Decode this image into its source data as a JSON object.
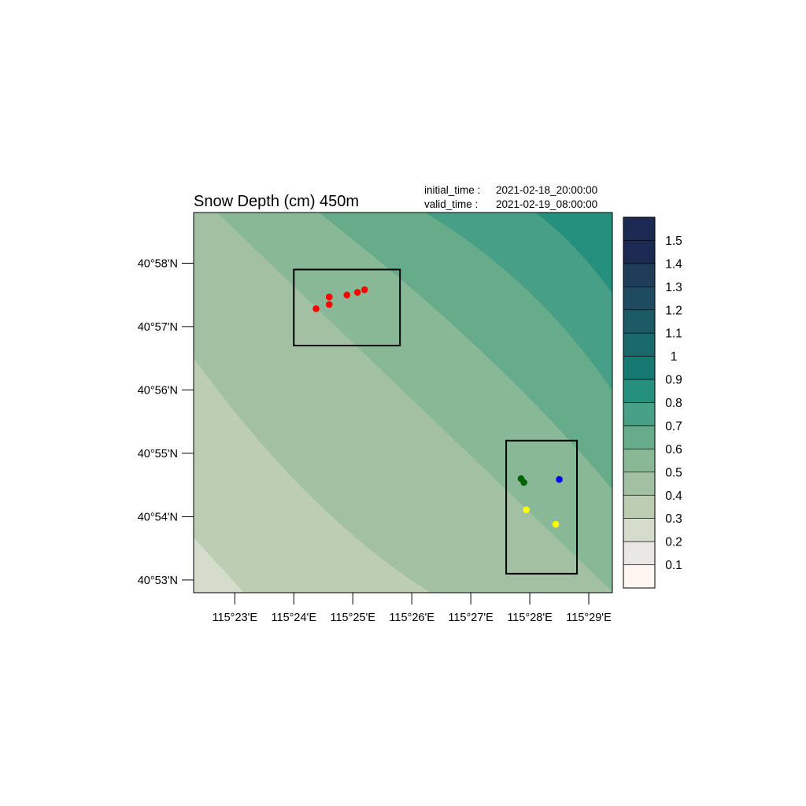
{
  "title": "Snow Depth (cm) 450m",
  "meta": {
    "initial_label": "initial_time :",
    "initial_value": "2021-02-18_20:00:00",
    "valid_label": "valid_time  :",
    "valid_value": "2021-02-19_08:00:00"
  },
  "axes": {
    "x_ticks": [
      "115°23'E",
      "115°24'E",
      "115°25'E",
      "115°26'E",
      "115°27'E",
      "115°28'E",
      "115°29'E"
    ],
    "y_ticks": [
      "40°58'N",
      "40°57'N",
      "40°56'N",
      "40°55'N",
      "40°54'N",
      "40°53'N"
    ],
    "x_range_deg": [
      115.3717,
      115.49
    ],
    "y_range_deg": [
      40.88,
      40.98
    ]
  },
  "colorbar": {
    "labels": [
      "1.5",
      "1.4",
      "1.3",
      "1.2",
      "1.1",
      "1",
      "0.9",
      "0.8",
      "0.7",
      "0.6",
      "0.5",
      "0.4",
      "0.3",
      "0.2",
      "0.1"
    ],
    "colors": [
      "#1c2a52",
      "#1f3d58",
      "#1e4b5f",
      "#1c5a66",
      "#19696d",
      "#177a72",
      "#26907e",
      "#47a085",
      "#66ab8a",
      "#88b895",
      "#a2c1a3",
      "#bccdb4",
      "#d4dccb",
      "#e8e7e1",
      "#fff6f2"
    ]
  },
  "map_data": {
    "field_levels": [
      "0.2",
      "0.3",
      "0.4",
      "0.5",
      "0.6",
      "0.7",
      "0.8",
      "0.9"
    ],
    "field_colors": [
      "#d4dccb",
      "#bccdb4",
      "#a2c1a3",
      "#88b895",
      "#66ab8a",
      "#47a085",
      "#26907e",
      "#177a72"
    ],
    "boxes": [
      {
        "lon": [
          115.4,
          115.43
        ],
        "lat": [
          40.945,
          40.965
        ]
      },
      {
        "lon": [
          115.46,
          115.48
        ],
        "lat": [
          40.885,
          40.92
        ]
      }
    ],
    "points": [
      {
        "lon": 115.4063,
        "lat": 40.9547,
        "color": "#ff0000"
      },
      {
        "lon": 115.41,
        "lat": 40.9558,
        "color": "#ff0000"
      },
      {
        "lon": 115.41,
        "lat": 40.9578,
        "color": "#ff0000"
      },
      {
        "lon": 115.415,
        "lat": 40.9583,
        "color": "#ff0000"
      },
      {
        "lon": 115.418,
        "lat": 40.959,
        "color": "#ff0000"
      },
      {
        "lon": 115.42,
        "lat": 40.9597,
        "color": "#ff0000"
      },
      {
        "lon": 115.4642,
        "lat": 40.91,
        "color": "#006400"
      },
      {
        "lon": 115.465,
        "lat": 40.909,
        "color": "#006400"
      },
      {
        "lon": 115.475,
        "lat": 40.9098,
        "color": "#0000ff"
      },
      {
        "lon": 115.4657,
        "lat": 40.9018,
        "color": "#ffff00"
      },
      {
        "lon": 115.474,
        "lat": 40.898,
        "color": "#ffff00"
      }
    ]
  }
}
